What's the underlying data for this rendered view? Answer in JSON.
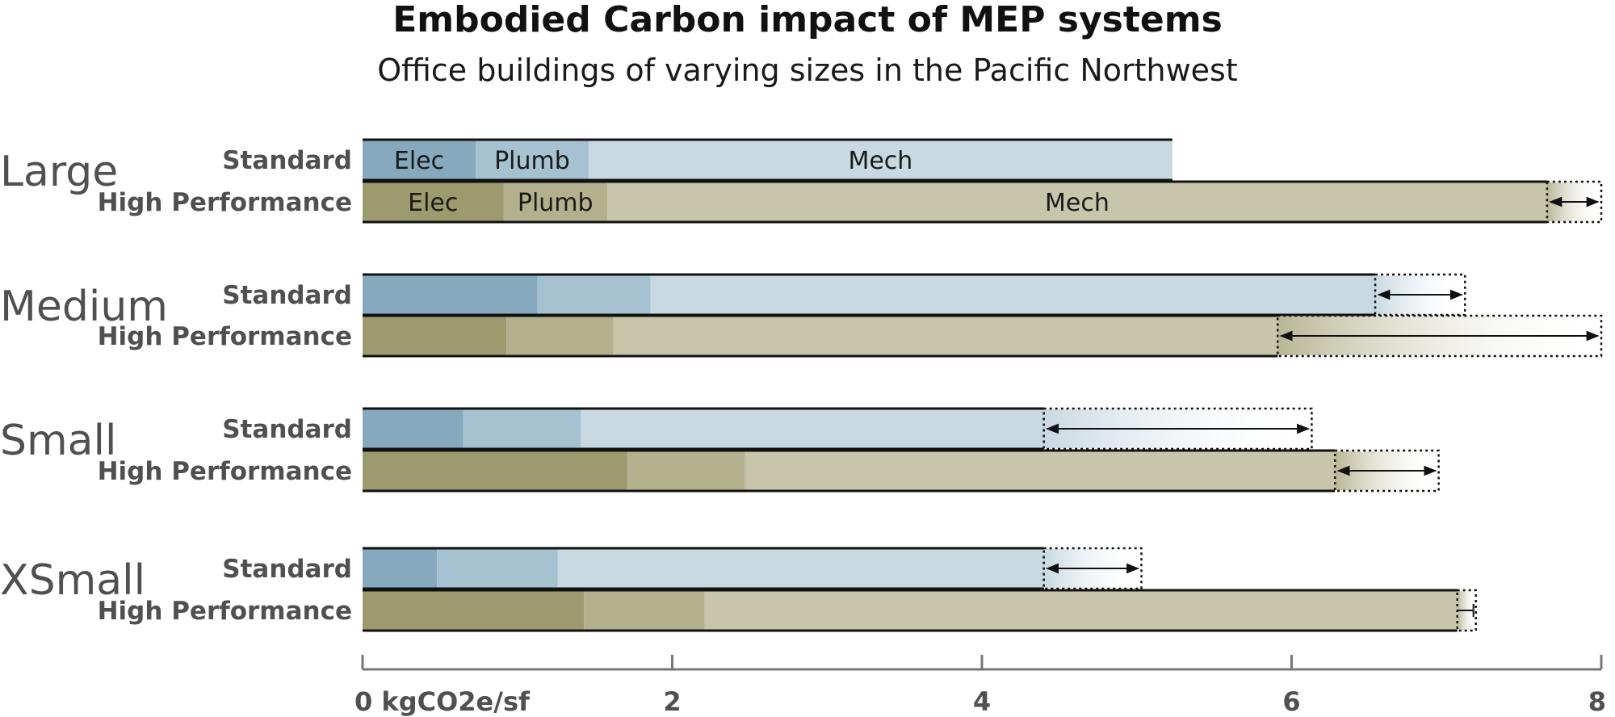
{
  "header": {
    "title": "Embodied Carbon impact of MEP systems",
    "subtitle": "Office buildings of varying sizes in the Pacific Northwest"
  },
  "colors": {
    "standard": {
      "Elec": "#86a9bd",
      "Plumb": "#a6c2d1",
      "Mech": "#c8d9e1",
      "range": "#c8d9e1"
    },
    "high_performance": {
      "Elec": "#9d9a6d",
      "Plumb": "#b2b08d",
      "Mech": "#c7c5aa",
      "range": "#b8b694"
    },
    "axis": "#777777",
    "label": "#505050"
  },
  "chart_data": {
    "type": "bar",
    "orientation": "horizontal",
    "stacked": true,
    "title": "Embodied Carbon impact of MEP systems",
    "subtitle": "Office buildings of varying sizes in the Pacific Northwest",
    "xlabel": "kgCO2e/sf",
    "xlim": [
      0,
      8
    ],
    "xticks": [
      0,
      2,
      4,
      6,
      8
    ],
    "xtick_labels": [
      "0 kgCO2e/sf",
      "2",
      "4",
      "6",
      "8"
    ],
    "components": [
      "Elec",
      "Plumb",
      "Mech"
    ],
    "groups": [
      {
        "name": "Large",
        "rows": [
          {
            "label": "Standard",
            "type": "standard",
            "Elec": 0.73,
            "Plumb": 0.73,
            "Mech": 3.77,
            "total": 5.23,
            "segment_labels": [
              "Elec",
              "Plumb",
              "Mech"
            ]
          },
          {
            "label": "High Performance",
            "type": "high_performance",
            "Elec": 0.91,
            "Plumb": 0.67,
            "Mech": 6.07,
            "total": 7.65,
            "range_max": 8.0,
            "segment_labels": [
              "Elec",
              "Plumb",
              "Mech"
            ]
          }
        ]
      },
      {
        "name": "Medium",
        "rows": [
          {
            "label": "Standard",
            "type": "standard",
            "Elec": 1.13,
            "Plumb": 0.73,
            "Mech": 4.68,
            "total": 6.54,
            "range_max": 7.12
          },
          {
            "label": "High Performance",
            "type": "high_performance",
            "Elec": 0.93,
            "Plumb": 0.69,
            "Mech": 4.29,
            "total": 5.91,
            "range_max": 8.0
          }
        ]
      },
      {
        "name": "Small",
        "rows": [
          {
            "label": "Standard",
            "type": "standard",
            "Elec": 0.65,
            "Plumb": 0.76,
            "Mech": 2.99,
            "total": 4.4,
            "range_max": 6.13
          },
          {
            "label": "High Performance",
            "type": "high_performance",
            "Elec": 1.71,
            "Plumb": 0.76,
            "Mech": 3.81,
            "total": 6.28,
            "range_max": 6.95
          }
        ]
      },
      {
        "name": "XSmall",
        "rows": [
          {
            "label": "Standard",
            "type": "standard",
            "Elec": 0.48,
            "Plumb": 0.78,
            "Mech": 3.14,
            "total": 4.4,
            "range_max": 5.03
          },
          {
            "label": "High Performance",
            "type": "high_performance",
            "Elec": 1.43,
            "Plumb": 0.78,
            "Mech": 4.86,
            "total": 7.07,
            "range_max": 7.19
          }
        ]
      }
    ]
  }
}
